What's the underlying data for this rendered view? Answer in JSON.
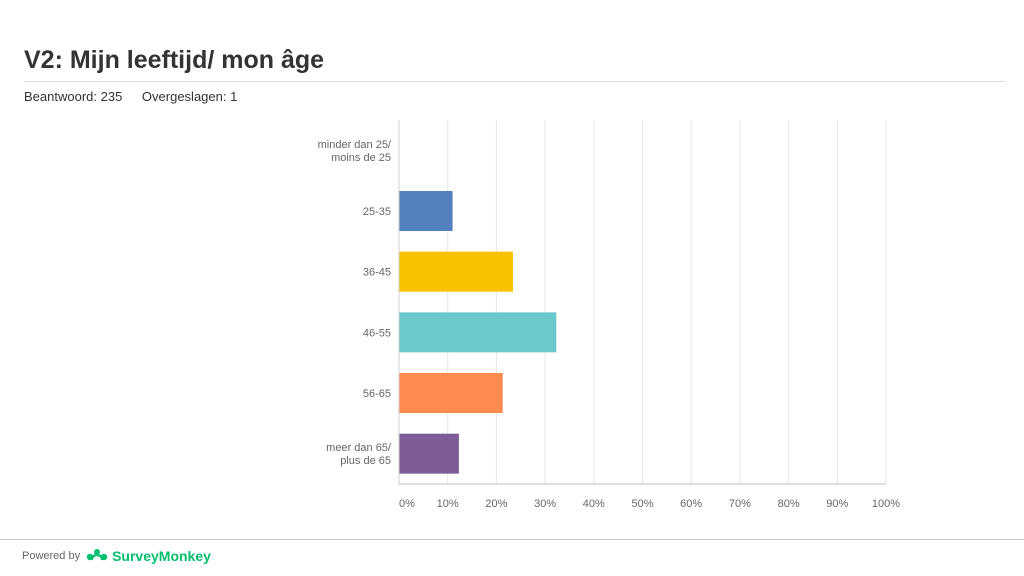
{
  "header": {
    "title": "V2: Mijn leeftijd/ mon âge",
    "answered": "Beantwoord: 235",
    "skipped": "Overgeslagen: 1"
  },
  "footer": {
    "powered_by": "Powered by",
    "brand": "SurveyMonkey",
    "brand_icon": "surveymonkey-logo-icon"
  },
  "chart_data": {
    "type": "bar",
    "orientation": "horizontal",
    "categories": [
      [
        "minder dan 25/",
        "moins de 25"
      ],
      [
        "25-35"
      ],
      [
        "36-45"
      ],
      [
        "46-55"
      ],
      [
        "56-65"
      ],
      [
        "meer dan 65/",
        "plus de 65"
      ]
    ],
    "values": [
      0,
      11,
      23.4,
      32.3,
      21.3,
      12.3
    ],
    "colors": [
      "#5381c0",
      "#5381c0",
      "#f9c200",
      "#6bc8cd",
      "#ff8b4f",
      "#7d5c98"
    ],
    "xlim": [
      0,
      100
    ],
    "xticks": [
      "0%",
      "10%",
      "20%",
      "30%",
      "40%",
      "50%",
      "60%",
      "70%",
      "80%",
      "90%",
      "100%"
    ],
    "grid": true
  }
}
